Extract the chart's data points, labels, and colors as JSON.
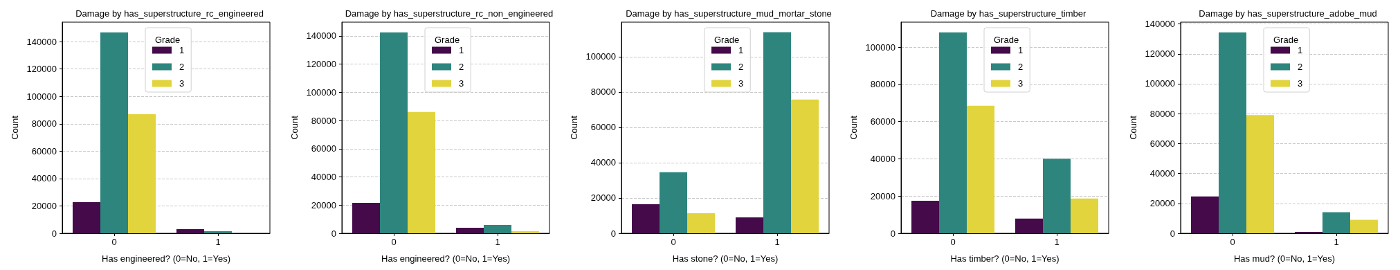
{
  "chart_data": [
    {
      "type": "bar",
      "title": "Damage by has_superstructure_rc_engineered",
      "xlabel": "Has engineered? (0=No, 1=Yes)",
      "ylabel": "Count",
      "legend_title": "Grade",
      "legend": "top",
      "grid": "y",
      "categories": [
        "0",
        "1"
      ],
      "ylim": [
        0,
        154200
      ],
      "yticks": [
        0,
        20000,
        40000,
        60000,
        80000,
        100000,
        120000,
        140000
      ],
      "series": [
        {
          "name": "1",
          "color": "#440a4a",
          "values": [
            22800,
            3000
          ]
        },
        {
          "name": "2",
          "color": "#2e857e",
          "values": [
            146800,
            1500
          ]
        },
        {
          "name": "3",
          "color": "#e2d43c",
          "values": [
            87000,
            0
          ]
        }
      ]
    },
    {
      "type": "bar",
      "title": "Damage by has_superstructure_rc_non_engineered",
      "xlabel": "Has engineered? (0=No, 1=Yes)",
      "ylabel": "Count",
      "legend_title": "Grade",
      "legend": "top",
      "grid": "y",
      "categories": [
        "0",
        "1"
      ],
      "ylim": [
        0,
        149800
      ],
      "yticks": [
        0,
        20000,
        40000,
        60000,
        80000,
        100000,
        120000,
        140000
      ],
      "series": [
        {
          "name": "1",
          "color": "#440a4a",
          "values": [
            21600,
            3900
          ]
        },
        {
          "name": "2",
          "color": "#2e857e",
          "values": [
            142600,
            5900
          ]
        },
        {
          "name": "3",
          "color": "#e2d43c",
          "values": [
            86100,
            1500
          ]
        }
      ]
    },
    {
      "type": "bar",
      "title": "Damage by has_superstructure_mud_mortar_stone",
      "xlabel": "Has stone? (0=No, 1=Yes)",
      "ylabel": "Count",
      "legend_title": "Grade",
      "legend": "top",
      "grid": "y",
      "categories": [
        "0",
        "1"
      ],
      "ylim": [
        0,
        119600
      ],
      "yticks": [
        0,
        20000,
        40000,
        60000,
        80000,
        100000
      ],
      "series": [
        {
          "name": "1",
          "color": "#440a4a",
          "values": [
            16500,
            9000
          ]
        },
        {
          "name": "2",
          "color": "#2e857e",
          "values": [
            34600,
            113900
          ]
        },
        {
          "name": "3",
          "color": "#e2d43c",
          "values": [
            11400,
            75800
          ]
        }
      ]
    },
    {
      "type": "bar",
      "title": "Damage by has_superstructure_timber",
      "xlabel": "Has timber? (0=No, 1=Yes)",
      "ylabel": "Count",
      "legend_title": "Grade",
      "legend": "top",
      "grid": "y",
      "categories": [
        "0",
        "1"
      ],
      "ylim": [
        0,
        113400
      ],
      "yticks": [
        0,
        20000,
        40000,
        60000,
        80000,
        100000
      ],
      "series": [
        {
          "name": "1",
          "color": "#440a4a",
          "values": [
            17500,
            7900
          ]
        },
        {
          "name": "2",
          "color": "#2e857e",
          "values": [
            107900,
            40100
          ]
        },
        {
          "name": "3",
          "color": "#e2d43c",
          "values": [
            68500,
            18700
          ]
        }
      ]
    },
    {
      "type": "bar",
      "title": "Damage by has_superstructure_adobe_mud",
      "xlabel": "Has mud? (0=No, 1=Yes)",
      "ylabel": "Count",
      "legend_title": "Grade",
      "legend": "top",
      "grid": "y",
      "categories": [
        "0",
        "1"
      ],
      "ylim": [
        0,
        141200
      ],
      "yticks": [
        0,
        20000,
        40000,
        60000,
        80000,
        100000,
        120000,
        140000
      ],
      "series": [
        {
          "name": "1",
          "color": "#440a4a",
          "values": [
            24600,
            900
          ]
        },
        {
          "name": "2",
          "color": "#2e857e",
          "values": [
            134400,
            14100
          ]
        },
        {
          "name": "3",
          "color": "#e2d43c",
          "values": [
            79100,
            9000
          ]
        }
      ]
    }
  ]
}
